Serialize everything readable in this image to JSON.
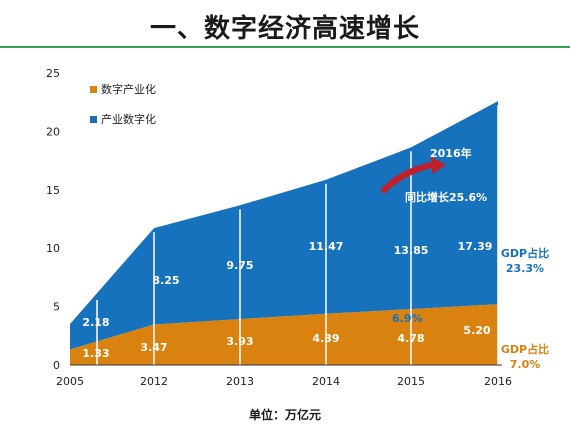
{
  "title": "一、数字经济高速增长",
  "unit_label": "单位：万亿元",
  "annotations": {
    "year_label": "2016年",
    "growth_label": "同比增长25.6%",
    "small_pct": "6.9%",
    "gdp_share_digital_label": "GDP占比",
    "gdp_share_digital_value": "23.3%",
    "gdp_share_industry_label": "GDP占比",
    "gdp_share_industry_value": "7.0%"
  },
  "colors": {
    "digital_industry": "#D9820F",
    "industry_digital": "#1772BE",
    "rule": "#3aa055",
    "arrow": "#C0202A",
    "annotation_text": "#1772BE",
    "annotation_orange": "#D9820F"
  },
  "chart_data": {
    "type": "area",
    "stacked": true,
    "categories": [
      "2005",
      "2012",
      "2013",
      "2014",
      "2015",
      "2016"
    ],
    "series": [
      {
        "name": "数字产业化",
        "values": [
          1.33,
          3.47,
          3.93,
          4.39,
          4.78,
          5.2
        ],
        "labels": [
          "1.33",
          "3.47",
          "3.93",
          "4.39",
          "4.78",
          "5.20"
        ]
      },
      {
        "name": "产业数字化",
        "values": [
          2.18,
          8.25,
          9.75,
          11.47,
          13.85,
          17.39
        ],
        "labels": [
          "2.18",
          "8.25",
          "9.75",
          "11.47",
          "13.85",
          "17.39"
        ]
      }
    ],
    "ylim": [
      0,
      25
    ],
    "yticks": [
      "0",
      "5",
      "10",
      "15",
      "20",
      "25"
    ],
    "legend_position": "top-left",
    "grid": false
  }
}
